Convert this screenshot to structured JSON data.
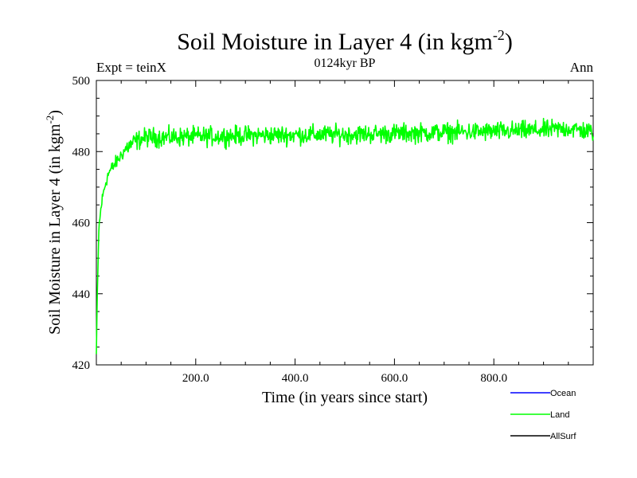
{
  "chart_data": {
    "type": "line",
    "title": "Soil Moisture in Layer 4 (in kgm",
    "title_sup": "-2",
    "title_end": ")",
    "subtitle": "0124kyr BP",
    "expt_label": "Expt = teinX",
    "season_label": "Ann",
    "xlabel": "Time (in years since start)",
    "ylabel": "Soil Moisture in Layer 4 (in kgm",
    "ylabel_sup": "-2",
    "ylabel_end": ")",
    "xlim": [
      0,
      1000
    ],
    "ylim": [
      420,
      500
    ],
    "x_ticks": [
      200,
      400,
      600,
      800
    ],
    "x_tick_labels": [
      "200.0",
      "400.0",
      "600.0",
      "800.0"
    ],
    "y_ticks": [
      420,
      440,
      460,
      480,
      500
    ],
    "y_tick_labels": [
      "420",
      "440",
      "460",
      "480",
      "500"
    ],
    "series": [
      {
        "name": "Land",
        "color": "#00ff00",
        "note": "annual values 0-1000 yrs: rapid spin-up from ~423 to ~480 by year ~50, plateau ~484, rising slightly to ~486 by year 1000, interannual noise about +/-3",
        "anchors": {
          "x": [
            0,
            2,
            5,
            10,
            15,
            20,
            25,
            30,
            40,
            50,
            60,
            70,
            80,
            100,
            150,
            200,
            300,
            400,
            500,
            600,
            700,
            800,
            900,
            950,
            1000
          ],
          "y": [
            423,
            440,
            458,
            465,
            469,
            472,
            474,
            475,
            477,
            479,
            481,
            482,
            483,
            484,
            484,
            484.2,
            484.5,
            484.7,
            484.8,
            485.1,
            485.4,
            485.6,
            486,
            486.5,
            485.5
          ]
        }
      },
      {
        "name": "Ocean",
        "color": "#0000ff",
        "values": []
      },
      {
        "name": "AllSurf",
        "color": "#000000",
        "values": []
      }
    ],
    "legend": [
      {
        "label": "Ocean",
        "color": "#0000ff"
      },
      {
        "label": "Land",
        "color": "#00ff00"
      },
      {
        "label": "AllSurf",
        "color": "#000000"
      }
    ],
    "legend_position": "bottom-right"
  }
}
